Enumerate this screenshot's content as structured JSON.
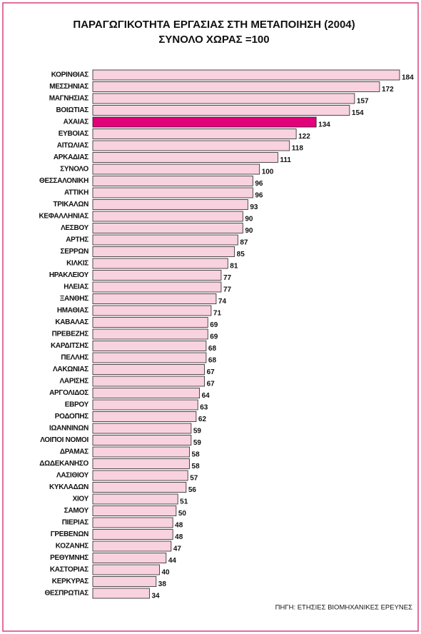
{
  "chart_data": {
    "type": "barh",
    "title": "ΠΑΡΑΓΩΓΙΚΟΤΗΤΑ ΕΡΓΑΣΙΑΣ ΣΤΗ ΜΕΤΑΠΟΙΗΣΗ (2004)",
    "subtitle": "ΣΥΝΟΛΟ ΧΩΡΑΣ =100",
    "source": "ΠΗΓΗ: ΕΤΗΣΙΕΣ ΒΙΟΜΗΧΑΝΙΚΕΣ ΕΡΕΥΝΕΣ",
    "categories": [
      "ΚΟΡΙΝΘΙΑΣ",
      "ΜΕΣΣΗΝΙΑΣ",
      "ΜΑΓΝΗΣΙΑΣ",
      "ΒΟΙΩΤΙΑΣ",
      "ΑΧΑΙΑΣ",
      "ΕΥΒΟΙΑΣ",
      "ΑΙΤΩΛΙΑΣ",
      "ΑΡΚΑΔΙΑΣ",
      "ΣΥΝΟΛΟ",
      "ΘΕΣΣΑΛΟΝΙΚΗ",
      "ΑΤΤΙΚΗ",
      "ΤΡΙΚΑΛΩΝ",
      "ΚΕΦΑΛΛΗΝΙΑΣ",
      "ΛΕΣΒΟΥ",
      "ΑΡΤΗΣ",
      "ΣΕΡΡΩΝ",
      "ΚΙΛΚΙΣ",
      "ΗΡΑΚΛΕΙΟΥ",
      "ΗΛΕΙΑΣ",
      "ΞΑΝΘΗΣ",
      "ΗΜΑΘΙΑΣ",
      "ΚΑΒΑΛΑΣ",
      "ΠΡΕΒΕΖΗΣ",
      "ΚΑΡΔΙΤΣΗΣ",
      "ΠΕΛΛΗΣ",
      "ΛΑΚΩΝΙΑΣ",
      "ΛΑΡΙΣΗΣ",
      "ΑΡΓΟΛΙΔΟΣ",
      "ΕΒΡΟΥ",
      "ΡΟΔΟΠΗΣ",
      "ΙΩΑΝΝΙΝΩΝ",
      "ΛΟΙΠΟΙ ΝΟΜΟΙ",
      "ΔΡΑΜΑΣ",
      "ΔΩΔΕΚΑΝΗΣΟ",
      "ΛΑΣΙΘΙΟΥ",
      "ΚΥΚΛΑΔΩΝ",
      "ΧΙΟΥ",
      "ΣΑΜΟΥ",
      "ΠΙΕΡΙΑΣ",
      "ΓΡΕΒΕΝΩΝ",
      "ΚΟΖΑΝΗΣ",
      "ΡΕΘΥΜΝΗΣ",
      "ΚΑΣΤΟΡΙΑΣ",
      "ΚΕΡΚΥΡΑΣ",
      "ΘΕΣΠΡΩΤΙΑΣ"
    ],
    "values": [
      184,
      172,
      157,
      154,
      134,
      122,
      118,
      111,
      100,
      96,
      96,
      93,
      90,
      90,
      87,
      85,
      81,
      77,
      77,
      74,
      71,
      69,
      69,
      68,
      68,
      67,
      67,
      64,
      63,
      62,
      59,
      59,
      58,
      58,
      57,
      56,
      51,
      50,
      48,
      48,
      47,
      44,
      40,
      38,
      34
    ],
    "color": "#f8d2de",
    "colors": [
      "#f8d2de",
      "#f8d2de",
      "#f8d2de",
      "#f8d2de",
      "#e2007a",
      "#f8d2de",
      "#f8d2de",
      "#f8d2de",
      "#f8d2de",
      "#f8d2de",
      "#f8d2de",
      "#f8d2de",
      "#f8d2de",
      "#f8d2de",
      "#f8d2de",
      "#f8d2de",
      "#f8d2de",
      "#f8d2de",
      "#f8d2de",
      "#f8d2de",
      "#f8d2de",
      "#f8d2de",
      "#f8d2de",
      "#f8d2de",
      "#f8d2de",
      "#f8d2de",
      "#f8d2de",
      "#f8d2de",
      "#f8d2de",
      "#f8d2de",
      "#f8d2de",
      "#f8d2de",
      "#f8d2de",
      "#f8d2de",
      "#f8d2de",
      "#f8d2de",
      "#f8d2de",
      "#f8d2de",
      "#f8d2de",
      "#f8d2de",
      "#f8d2de",
      "#f8d2de",
      "#f8d2de",
      "#f8d2de",
      "#f8d2de"
    ]
  }
}
